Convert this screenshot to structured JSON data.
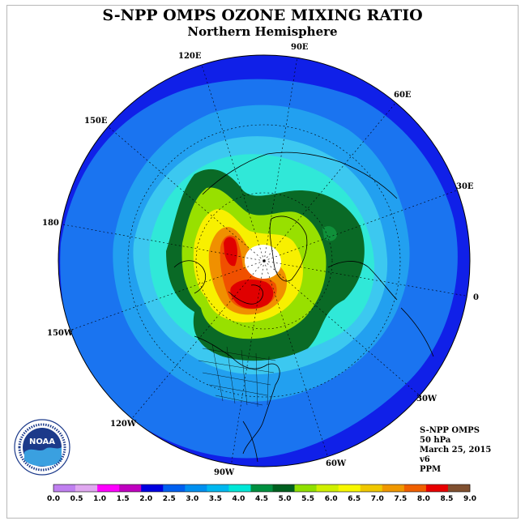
{
  "title": "S-NPP OMPS OZONE MIXING RATIO",
  "subtitle": "Northern Hemisphere",
  "longitude_labels": [
    "90E",
    "60E",
    "30E",
    "0",
    "30W",
    "60W",
    "90W",
    "120W",
    "150W",
    "180",
    "150E",
    "120E"
  ],
  "info": {
    "instrument": "S-NPP OMPS",
    "pressure": "50 hPa",
    "date": "March 25, 2015",
    "version": "v6",
    "units": "PPM"
  },
  "logo": {
    "text": "NOAA",
    "ring_text": "NATIONAL OCEANIC AND ATMOSPHERIC ADMINISTRATION · U.S. DEPARTMENT OF COMMERCE"
  },
  "colorbar": {
    "ticks": [
      "0.0",
      "0.5",
      "1.0",
      "1.5",
      "2.0",
      "2.5",
      "3.0",
      "3.5",
      "4.0",
      "4.5",
      "5.0",
      "5.5",
      "6.0",
      "6.5",
      "7.0",
      "7.5",
      "8.0",
      "8.5",
      "9.0"
    ],
    "colors": [
      "#c080f0",
      "#e0a8f0",
      "#ff00ff",
      "#c000c0",
      "#0000e0",
      "#0060f0",
      "#0090f0",
      "#00b8f0",
      "#00e8d8",
      "#009040",
      "#006020",
      "#90e000",
      "#d0f000",
      "#f8f800",
      "#f0c800",
      "#f09800",
      "#f06000",
      "#e80000",
      "#805030"
    ]
  },
  "levels": {
    "blue_dark": "#1020e8",
    "blue_mid": "#1a74f0",
    "blue_light": "#22a0f0",
    "sky": "#3cc8f0",
    "cyan": "#30e8d8",
    "green": "#10903a",
    "dark_green": "#0a6a26",
    "lime": "#98e000",
    "yellow_green": "#d8f000",
    "yellow": "#f8f000",
    "gold": "#f0c000",
    "orange": "#f09000",
    "red_orange": "#f05000",
    "red": "#e00000"
  }
}
